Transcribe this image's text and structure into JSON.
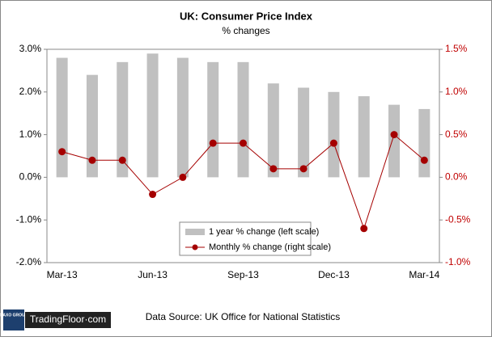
{
  "chart_data": {
    "type": "bar-line",
    "title": "UK: Consumer Price Index",
    "subtitle": "% changes",
    "categories": [
      "Mar-13",
      null,
      null,
      "Jun-13",
      null,
      null,
      "Sep-13",
      null,
      null,
      "Dec-13",
      null,
      null,
      "Mar-14"
    ],
    "series": [
      {
        "name": "1 year % change (left scale)",
        "type": "bar",
        "color": "#c0c0c0",
        "values": [
          2.8,
          2.4,
          2.7,
          2.9,
          2.8,
          2.7,
          2.7,
          2.2,
          2.1,
          2.0,
          1.9,
          1.7,
          1.6
        ]
      },
      {
        "name": "Monthly % change (right scale)",
        "type": "line",
        "axis": "y2",
        "color": "#a50000",
        "values": [
          0.3,
          0.2,
          0.2,
          -0.2,
          0.0,
          0.4,
          0.4,
          0.1,
          0.1,
          0.4,
          -0.6,
          0.5,
          0.2
        ]
      }
    ],
    "ylim": [
      -2,
      3
    ],
    "yticks": [
      {
        "value": -2,
        "label": "-2.0%"
      },
      {
        "value": -1,
        "label": "-1.0%"
      },
      {
        "value": 0,
        "label": "0.0%"
      },
      {
        "value": 1,
        "label": "1.0%"
      },
      {
        "value": 2,
        "label": "2.0%"
      },
      {
        "value": 3,
        "label": "3.0%"
      }
    ],
    "y2lim": [
      -1,
      1.5
    ],
    "y2ticks": [
      {
        "value": -1,
        "label": "-1.0%"
      },
      {
        "value": -0.5,
        "label": "-0.5%"
      },
      {
        "value": 0,
        "label": "0.0%"
      },
      {
        "value": 0.5,
        "label": "0.5%"
      },
      {
        "value": 1,
        "label": "1.0%"
      },
      {
        "value": 1.5,
        "label": "1.5%"
      }
    ],
    "source": "Data Source: UK Office for National Statistics",
    "logo": {
      "group": "SAXO GROUP",
      "brand": "TradingFloor·com"
    }
  }
}
